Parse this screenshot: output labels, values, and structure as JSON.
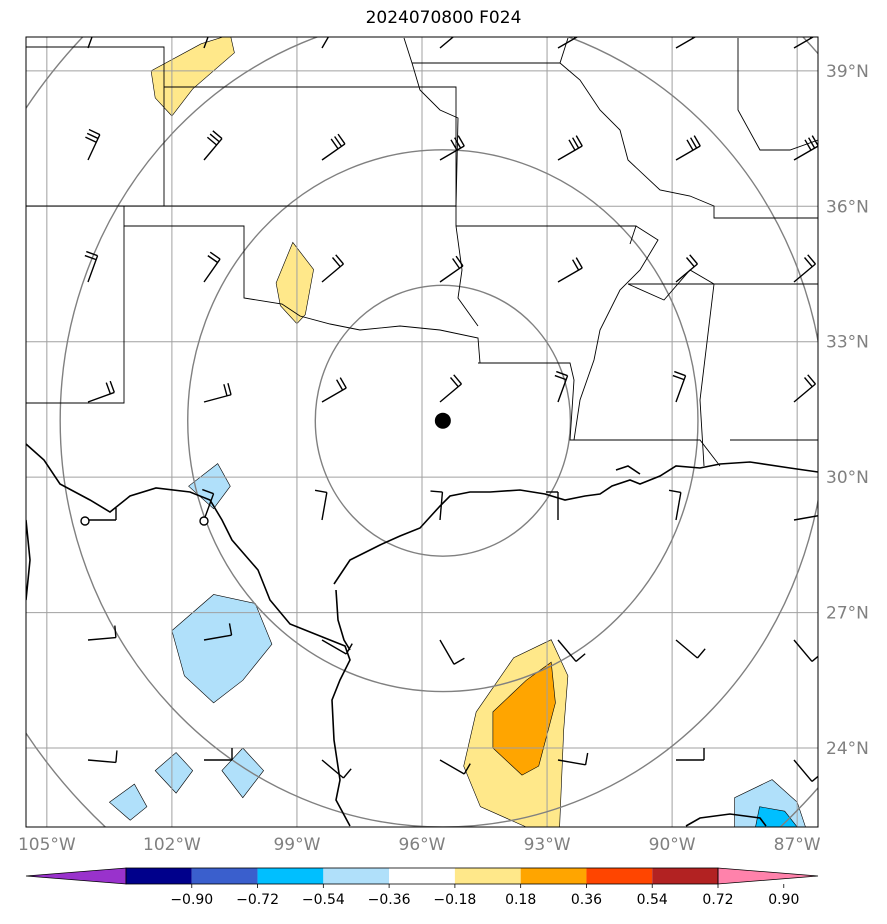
{
  "title": "2024070800 F024",
  "map": {
    "lon_range": [
      -105.5,
      -86.5
    ],
    "lat_range": [
      22.25,
      39.75
    ],
    "lon_ticks": [
      "105°W",
      "102°W",
      "99°W",
      "96°W",
      "93°W",
      "90°W",
      "87°W"
    ],
    "lon_tick_values": [
      -105,
      -102,
      -99,
      -96,
      -93,
      -90,
      -87
    ],
    "lat_ticks": [
      "39°N",
      "36°N",
      "33°N",
      "30°N",
      "27°N",
      "24°N"
    ],
    "lat_tick_values": [
      39,
      36,
      33,
      30,
      27,
      24
    ],
    "center_point": {
      "lon": -95.5,
      "lat": 31.25
    },
    "range_ring_radii_deg": [
      3,
      6,
      9,
      12
    ],
    "colors": {
      "grid": "#a0a0a0",
      "rings": "#808080",
      "coast": "#000000",
      "borders": "#000000"
    }
  },
  "colorbar": {
    "labels": [
      "−0.90",
      "−0.72",
      "−0.54",
      "−0.36",
      "−0.18",
      "0.18",
      "0.36",
      "0.54",
      "0.72",
      "0.90"
    ],
    "colors": [
      "#9932cc",
      "#00008b",
      "#3a5fcd",
      "#00bfff",
      "#b0e0fa",
      "#ffffff",
      "#ffe88a",
      "#ffa500",
      "#ff4500",
      "#b22222",
      "#ff82ab"
    ]
  },
  "contours": [
    {
      "level": "0.18-0.36",
      "color": "#ffe88a",
      "lonlat": [
        [
          -102.5,
          39.0
        ],
        [
          -101.3,
          39.6
        ],
        [
          -100.6,
          39.8
        ],
        [
          -100.5,
          39.4
        ],
        [
          -101.5,
          38.6
        ],
        [
          -102.0,
          38.0
        ],
        [
          -102.4,
          38.4
        ]
      ]
    },
    {
      "level": "0.18-0.36",
      "color": "#ffe88a",
      "lonlat": [
        [
          -99.5,
          34.3
        ],
        [
          -99.1,
          35.2
        ],
        [
          -98.6,
          34.6
        ],
        [
          -98.8,
          33.6
        ],
        [
          -99.0,
          33.4
        ],
        [
          -99.4,
          33.8
        ]
      ]
    },
    {
      "level": "0.18-0.36",
      "color": "#ffe88a",
      "lonlat": [
        [
          -94.7,
          24.8
        ],
        [
          -93.8,
          26.0
        ],
        [
          -92.9,
          26.4
        ],
        [
          -92.5,
          25.6
        ],
        [
          -92.6,
          24.4
        ],
        [
          -92.7,
          22.25
        ],
        [
          -93.5,
          22.25
        ],
        [
          -94.6,
          22.7
        ],
        [
          -95.0,
          23.6
        ]
      ]
    },
    {
      "level": "0.36-0.54",
      "color": "#ffa500",
      "lonlat": [
        [
          -94.3,
          24.8
        ],
        [
          -93.5,
          25.5
        ],
        [
          -92.9,
          25.9
        ],
        [
          -92.8,
          25.0
        ],
        [
          -93.2,
          23.6
        ],
        [
          -93.6,
          23.4
        ],
        [
          -94.3,
          24.0
        ]
      ]
    },
    {
      "level": "-0.36--0.18",
      "color": "#b0e0fa",
      "lonlat": [
        [
          -102.0,
          26.6
        ],
        [
          -101.0,
          27.4
        ],
        [
          -100.0,
          27.2
        ],
        [
          -99.6,
          26.3
        ],
        [
          -100.3,
          25.5
        ],
        [
          -101.0,
          25.0
        ],
        [
          -101.7,
          25.6
        ]
      ]
    },
    {
      "level": "-0.36--0.18",
      "color": "#b0e0fa",
      "lonlat": [
        [
          -101.6,
          29.8
        ],
        [
          -100.9,
          30.3
        ],
        [
          -100.6,
          29.8
        ],
        [
          -101.0,
          29.3
        ]
      ]
    },
    {
      "level": "-0.36--0.18",
      "color": "#b0e0fa",
      "lonlat": [
        [
          -103.5,
          22.8
        ],
        [
          -102.9,
          23.2
        ],
        [
          -102.6,
          22.7
        ],
        [
          -103.0,
          22.4
        ]
      ]
    },
    {
      "level": "-0.36--0.18",
      "color": "#b0e0fa",
      "lonlat": [
        [
          -102.4,
          23.5
        ],
        [
          -101.9,
          23.9
        ],
        [
          -101.5,
          23.5
        ],
        [
          -101.9,
          23.0
        ]
      ]
    },
    {
      "level": "-0.36--0.18",
      "color": "#b0e0fa",
      "lonlat": [
        [
          -100.8,
          23.5
        ],
        [
          -100.3,
          24.0
        ],
        [
          -99.8,
          23.5
        ],
        [
          -100.3,
          22.9
        ]
      ]
    },
    {
      "level": "-0.36--0.18",
      "color": "#b0e0fa",
      "lonlat": [
        [
          -88.5,
          22.25
        ],
        [
          -88.5,
          22.9
        ],
        [
          -87.6,
          23.3
        ],
        [
          -87.0,
          22.8
        ],
        [
          -86.8,
          22.25
        ]
      ]
    },
    {
      "level": "-0.54--0.36",
      "color": "#00bfff",
      "lonlat": [
        [
          -88.0,
          22.25
        ],
        [
          -87.9,
          22.7
        ],
        [
          -87.3,
          22.6
        ],
        [
          -87.0,
          22.25
        ]
      ]
    }
  ]
}
